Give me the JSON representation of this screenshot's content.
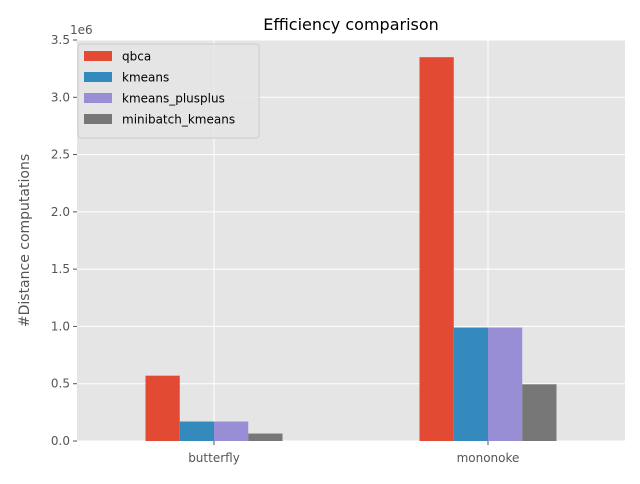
{
  "chart_data": {
    "type": "bar",
    "title": "Efficiency comparison",
    "xlabel": "",
    "ylabel": "#Distance computations",
    "scale_label": "1e6",
    "categories": [
      "butterfly",
      "mononoke"
    ],
    "ylim": [
      0,
      3500000
    ],
    "yticks": [
      0,
      500000,
      1000000,
      1500000,
      2000000,
      2500000,
      3000000,
      3500000
    ],
    "ytick_labels": [
      "0.0",
      "0.5",
      "1.0",
      "1.5",
      "2.0",
      "2.5",
      "3.0",
      "3.5"
    ],
    "grid": true,
    "legend_position": "top-left",
    "series": [
      {
        "name": "qbca",
        "color": "#E24A33",
        "values": [
          570000,
          3350000
        ]
      },
      {
        "name": "kmeans",
        "color": "#348ABD",
        "values": [
          170000,
          990000
        ]
      },
      {
        "name": "kmeans_plusplus",
        "color": "#988ED5",
        "values": [
          170000,
          990000
        ]
      },
      {
        "name": "minibatch_kmeans",
        "color": "#777777",
        "values": [
          65000,
          495000
        ]
      }
    ]
  }
}
